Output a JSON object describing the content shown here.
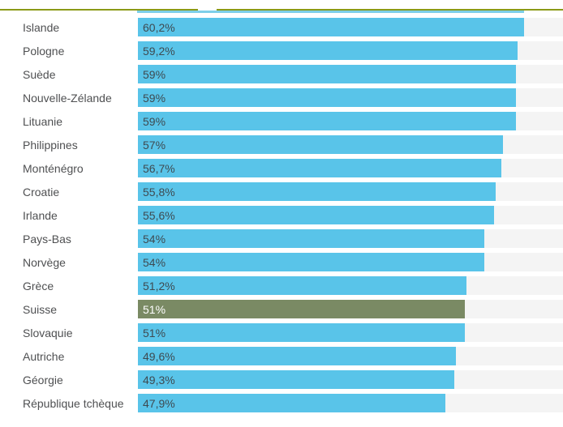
{
  "chart_data": {
    "type": "bar",
    "orientation": "horizontal",
    "title": "",
    "xlabel": "",
    "ylabel": "",
    "xlim": [
      0,
      66.3
    ],
    "grid": false,
    "legend": false,
    "categories": [
      "Islande",
      "Pologne",
      "Suède",
      "Nouvelle-Zélande",
      "Lituanie",
      "Philippines",
      "Monténégro",
      "Croatie",
      "Irlande",
      "Pays-Bas",
      "Norvège",
      "Grèce",
      "Suisse",
      "Slovaquie",
      "Autriche",
      "Géorgie",
      "République tchèque"
    ],
    "values": [
      60.2,
      59.2,
      59,
      59,
      59,
      57,
      56.7,
      55.8,
      55.6,
      54,
      54,
      51.2,
      51,
      51,
      49.6,
      49.3,
      47.9
    ],
    "value_labels": [
      "60,2%",
      "59,2%",
      "59%",
      "59%",
      "59%",
      "57%",
      "56,7%",
      "55,8%",
      "55,6%",
      "54%",
      "54%",
      "51,2%",
      "51%",
      "51%",
      "49,6%",
      "49,3%",
      "47,9%"
    ],
    "highlighted_category": "Suisse",
    "highlight_index": 12
  },
  "colors": {
    "bar": "#59c4e9",
    "highlight_bar": "#7a8a64",
    "track": "#f4f4f4",
    "top_border": "#8b9a17",
    "top_accent": "#7ecfe9",
    "label_text": "#4f5052",
    "value_text": "#3e4a51",
    "highlight_value_text": "#ffffff"
  }
}
